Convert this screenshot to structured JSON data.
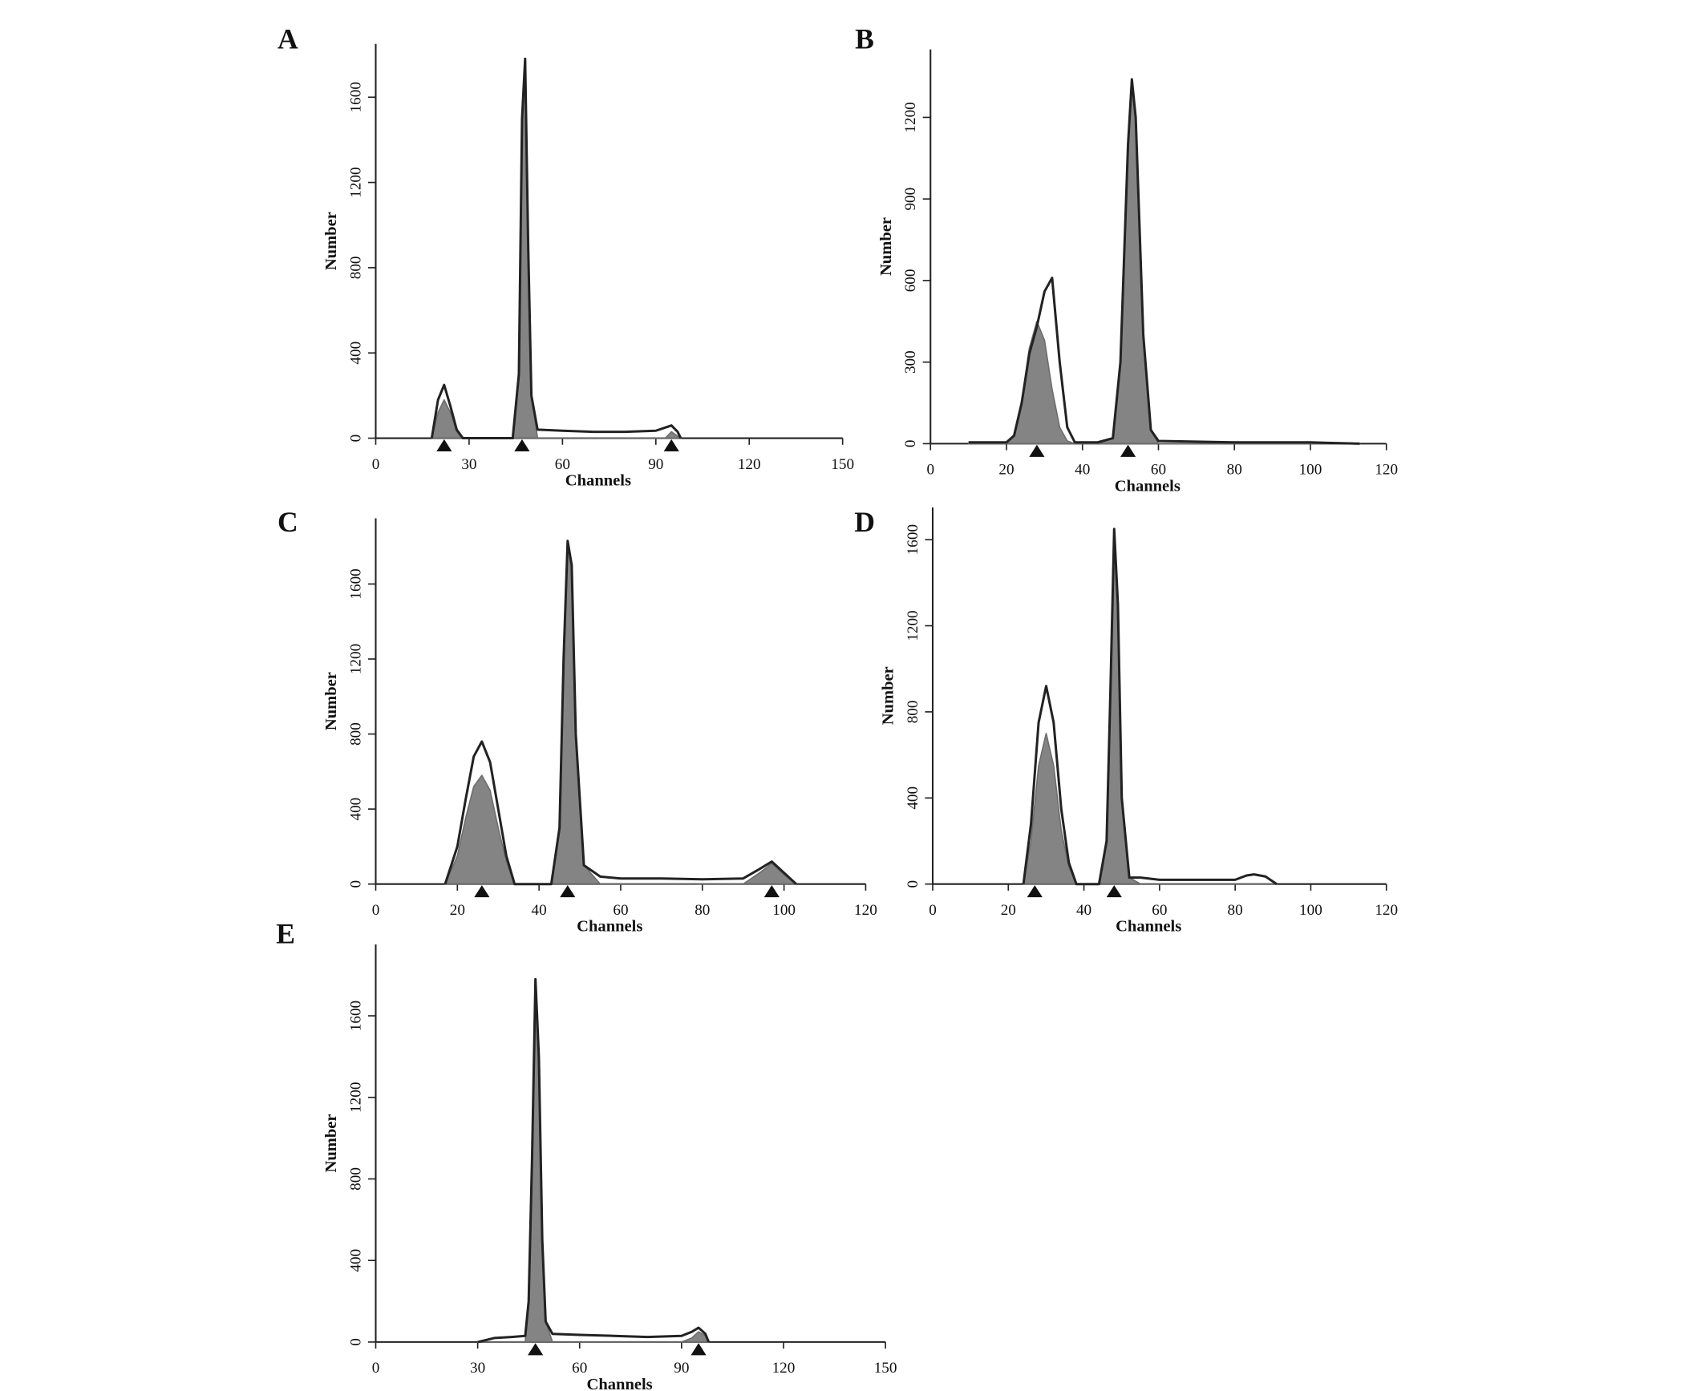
{
  "chart_data": [
    {
      "type": "area",
      "label": "A",
      "xlabel": "Channels",
      "ylabel": "Number",
      "xlim": [
        0,
        150
      ],
      "ylim": [
        0,
        1850
      ],
      "xticks": [
        0,
        30,
        60,
        90,
        120,
        150
      ],
      "yticks": [
        0,
        400,
        800,
        1200,
        1600
      ],
      "x": [
        18,
        20,
        22,
        24,
        26,
        28,
        44,
        46,
        47,
        48,
        49,
        50,
        52,
        60,
        70,
        80,
        90,
        93,
        95,
        97,
        98
      ],
      "series": [
        {
          "color": "#6e6e6e",
          "fill": true,
          "values": [
            0,
            120,
            180,
            120,
            30,
            0,
            0,
            300,
            1500,
            1780,
            900,
            200,
            0,
            0,
            0,
            0,
            0,
            0,
            30,
            10,
            0
          ]
        },
        {
          "color": "#222222",
          "fill": false,
          "values": [
            0,
            180,
            250,
            150,
            40,
            0,
            0,
            300,
            1500,
            1780,
            900,
            200,
            40,
            35,
            30,
            30,
            35,
            50,
            60,
            30,
            0
          ]
        }
      ],
      "markers": [
        22,
        47,
        95
      ]
    },
    {
      "type": "area",
      "label": "B",
      "xlabel": "Channels",
      "ylabel": "Number",
      "xlim": [
        0,
        120
      ],
      "ylim": [
        0,
        1450
      ],
      "xticks": [
        0,
        20,
        40,
        60,
        80,
        100,
        120
      ],
      "yticks": [
        0,
        300,
        600,
        900,
        1200
      ],
      "x": [
        10,
        20,
        22,
        24,
        26,
        28,
        30,
        32,
        34,
        36,
        38,
        44,
        48,
        50,
        52,
        53,
        54,
        56,
        58,
        60,
        80,
        100,
        113
      ],
      "series": [
        {
          "color": "#6e6e6e",
          "fill": true,
          "values": [
            0,
            0,
            30,
            150,
            350,
            450,
            380,
            200,
            60,
            10,
            0,
            0,
            20,
            300,
            1100,
            1320,
            1200,
            400,
            50,
            0,
            0,
            0,
            0
          ]
        },
        {
          "color": "#222222",
          "fill": false,
          "values": [
            5,
            5,
            30,
            150,
            330,
            430,
            560,
            610,
            300,
            60,
            5,
            5,
            20,
            300,
            1100,
            1340,
            1200,
            400,
            50,
            10,
            5,
            5,
            0
          ]
        }
      ],
      "markers": [
        28,
        52
      ]
    },
    {
      "type": "area",
      "label": "C",
      "xlabel": "Channels",
      "ylabel": "Number",
      "xlim": [
        0,
        120
      ],
      "ylim": [
        0,
        1950
      ],
      "xticks": [
        0,
        20,
        40,
        60,
        80,
        100,
        120
      ],
      "yticks": [
        0,
        400,
        800,
        1200,
        1600
      ],
      "x": [
        17,
        20,
        22,
        24,
        26,
        28,
        30,
        32,
        34,
        43,
        45,
        46,
        47,
        48,
        49,
        51,
        55,
        60,
        70,
        80,
        90,
        94,
        97,
        100,
        103
      ],
      "series": [
        {
          "color": "#6e6e6e",
          "fill": true,
          "values": [
            0,
            150,
            350,
            520,
            580,
            500,
            300,
            120,
            0,
            0,
            300,
            1200,
            1830,
            1700,
            800,
            100,
            0,
            0,
            0,
            0,
            0,
            60,
            110,
            50,
            0
          ]
        },
        {
          "color": "#222222",
          "fill": false,
          "values": [
            0,
            200,
            450,
            680,
            760,
            650,
            400,
            150,
            0,
            0,
            300,
            1200,
            1830,
            1700,
            800,
            100,
            40,
            30,
            30,
            25,
            30,
            80,
            120,
            60,
            0
          ]
        }
      ],
      "markers": [
        26,
        47,
        97
      ]
    },
    {
      "type": "area",
      "label": "D",
      "xlabel": "Channels",
      "ylabel": "Number",
      "xlim": [
        0,
        120
      ],
      "ylim": [
        0,
        1750
      ],
      "xticks": [
        0,
        20,
        40,
        60,
        80,
        100,
        120
      ],
      "yticks": [
        0,
        400,
        800,
        1200,
        1600
      ],
      "x": [
        24,
        26,
        28,
        30,
        32,
        34,
        36,
        38,
        44,
        46,
        47,
        48,
        49,
        50,
        52,
        55,
        60,
        70,
        80,
        83,
        85,
        88,
        91
      ],
      "series": [
        {
          "color": "#6e6e6e",
          "fill": true,
          "values": [
            0,
            200,
            550,
            700,
            550,
            250,
            80,
            0,
            0,
            200,
            900,
            1650,
            1300,
            400,
            30,
            0,
            0,
            0,
            0,
            0,
            0,
            0,
            0
          ]
        },
        {
          "color": "#222222",
          "fill": false,
          "values": [
            0,
            280,
            750,
            920,
            750,
            350,
            100,
            0,
            0,
            200,
            900,
            1650,
            1300,
            400,
            30,
            30,
            20,
            20,
            20,
            40,
            45,
            35,
            0
          ]
        }
      ],
      "markers": [
        27,
        48
      ]
    },
    {
      "type": "area",
      "label": "E",
      "xlabel": "Channels",
      "ylabel": "Number",
      "xlim": [
        0,
        150
      ],
      "ylim": [
        0,
        1950
      ],
      "xticks": [
        0,
        30,
        60,
        90,
        120,
        150
      ],
      "yticks": [
        0,
        400,
        800,
        1200,
        1600
      ],
      "x": [
        30,
        35,
        40,
        44,
        45,
        46,
        47,
        48,
        49,
        50,
        52,
        60,
        70,
        80,
        90,
        93,
        95,
        97,
        98
      ],
      "series": [
        {
          "color": "#6e6e6e",
          "fill": true,
          "values": [
            0,
            0,
            0,
            0,
            200,
            900,
            1780,
            1400,
            500,
            100,
            0,
            0,
            0,
            0,
            0,
            20,
            50,
            30,
            0
          ]
        },
        {
          "color": "#222222",
          "fill": false,
          "values": [
            0,
            20,
            25,
            30,
            200,
            900,
            1780,
            1400,
            500,
            100,
            40,
            35,
            30,
            25,
            30,
            50,
            70,
            40,
            0
          ]
        }
      ],
      "markers": [
        47,
        95
      ]
    }
  ]
}
